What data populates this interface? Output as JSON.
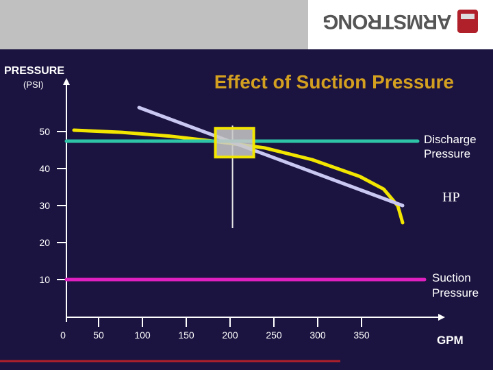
{
  "header": {
    "logo_text": "ARMSTRONG"
  },
  "chart_data": {
    "type": "line",
    "title": "Effect of Suction Pressure",
    "ylabel": "PRESSURE",
    "ylabel_unit": "(PSI)",
    "xlabel": "GPM",
    "xlim": [
      0,
      350
    ],
    "ylim": [
      0,
      50
    ],
    "x_ticks": [
      0,
      50,
      100,
      150,
      200,
      250,
      300,
      350
    ],
    "y_ticks": [
      10,
      20,
      30,
      40,
      50
    ],
    "grid": false,
    "series": [
      {
        "name": "",
        "role": "pump-curve",
        "color": "#f2e600",
        "points": [
          [
            0,
            50
          ],
          [
            50,
            49.5
          ],
          [
            100,
            48.6
          ],
          [
            150,
            47.3
          ],
          [
            200,
            45.8
          ],
          [
            250,
            43
          ],
          [
            300,
            39
          ],
          [
            325,
            36
          ],
          [
            340,
            32
          ],
          [
            345,
            28
          ]
        ]
      },
      {
        "name": "HP",
        "color": "#c9c8f2",
        "points": [
          [
            -80,
            58
          ],
          [
            345,
            29
          ]
        ]
      },
      {
        "name": "Discharge Pressure",
        "color": "#2ec4a8",
        "points": [
          [
            0,
            47
          ],
          [
            380,
            47
          ]
        ]
      },
      {
        "name": "Suction Pressure",
        "color": "#e020c0",
        "points": [
          [
            0,
            10
          ],
          [
            380,
            10
          ]
        ]
      }
    ],
    "operating_point": {
      "x": 170,
      "y": 47,
      "color": "#f2e600"
    }
  }
}
